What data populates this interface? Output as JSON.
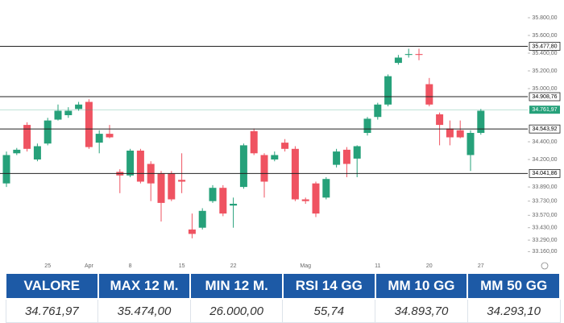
{
  "chart_data": {
    "type": "candlestick",
    "categories": [
      null,
      null,
      null,
      null,
      "25",
      null,
      null,
      null,
      "Apr",
      null,
      null,
      null,
      "8",
      null,
      null,
      null,
      null,
      "15",
      null,
      null,
      null,
      null,
      "22",
      null,
      null,
      null,
      null,
      null,
      null,
      "Mag",
      null,
      null,
      null,
      null,
      null,
      null,
      "11",
      null,
      null,
      null,
      null,
      "20",
      null,
      null,
      null,
      null,
      "27"
    ],
    "open": [
      33930,
      34270,
      34590,
      34200,
      34380,
      34650,
      34700,
      34770,
      34850,
      34390,
      34490,
      34060,
      34020,
      34300,
      34150,
      34040,
      34040,
      33970,
      33410,
      33430,
      33730,
      33880,
      33680,
      33890,
      34520,
      34250,
      34200,
      34390,
      34320,
      33750,
      33930,
      33770,
      34140,
      34310,
      34210,
      34500,
      34680,
      34820,
      35290,
      35380,
      35390,
      35050,
      34710,
      34550,
      34530,
      34250,
      34500
    ],
    "high": [
      34290,
      34330,
      34620,
      34380,
      34670,
      34820,
      34790,
      34850,
      34880,
      34530,
      34590,
      34090,
      34320,
      34320,
      34180,
      34070,
      34070,
      34270,
      33590,
      33650,
      33910,
      33910,
      33770,
      34380,
      34550,
      34270,
      34290,
      34430,
      34350,
      33770,
      33950,
      34000,
      34320,
      34340,
      34360,
      34680,
      34840,
      35160,
      35380,
      35450,
      35450,
      35120,
      34730,
      34640,
      34640,
      34530,
      34770
    ],
    "low": [
      33890,
      34250,
      34290,
      34180,
      34360,
      34640,
      34670,
      34750,
      34320,
      34270,
      34440,
      33820,
      34000,
      33930,
      33730,
      33500,
      33730,
      33820,
      33310,
      33410,
      33710,
      33560,
      33430,
      33870,
      34250,
      33770,
      34180,
      34290,
      33730,
      33700,
      33550,
      33750,
      34110,
      34000,
      34000,
      34470,
      34650,
      34800,
      35270,
      35350,
      35320,
      34800,
      34360,
      34360,
      34440,
      34070,
      34480
    ],
    "close": [
      34250,
      34310,
      34320,
      34350,
      34640,
      34750,
      34750,
      34820,
      34340,
      34490,
      34450,
      34020,
      34300,
      33950,
      33930,
      33710,
      33750,
      33950,
      33360,
      33620,
      33880,
      33590,
      33700,
      34360,
      34270,
      33950,
      34250,
      34320,
      33750,
      33730,
      33590,
      33980,
      34290,
      34150,
      34350,
      34660,
      34820,
      35140,
      35350,
      35390,
      35380,
      34820,
      34590,
      34450,
      34450,
      34500,
      34750
    ],
    "up_color": "#26a17a",
    "down_color": "#ef5361",
    "ylim": [
      33000,
      36000
    ],
    "yticks": [
      {
        "value": 35800,
        "label": "35.800,00"
      },
      {
        "value": 35600,
        "label": "35.600,00"
      },
      {
        "value": 35400,
        "label": "35.400,00"
      },
      {
        "value": 35200,
        "label": "35.200,00"
      },
      {
        "value": 35000,
        "label": "35.000,00"
      },
      {
        "value": 34400,
        "label": "34.400,00"
      },
      {
        "value": 34200,
        "label": "34.200,00"
      },
      {
        "value": 33890,
        "label": "33.890,00"
      },
      {
        "value": 33730,
        "label": "33.730,00"
      },
      {
        "value": 33570,
        "label": "33.570,00"
      },
      {
        "value": 33430,
        "label": "33.430,00"
      },
      {
        "value": 33290,
        "label": "33.290,00"
      },
      {
        "value": 33160,
        "label": "33.160,00"
      }
    ],
    "levels": [
      {
        "value": 35477.8,
        "label": "35.477,80"
      },
      {
        "value": 34908.76,
        "label": "34.908,76"
      },
      {
        "value": 34543.92,
        "label": "34.543,92"
      },
      {
        "value": 34041.86,
        "label": "34.041,86"
      }
    ],
    "last_price": {
      "value": 34761.97,
      "label": "34.761,97"
    },
    "last_price_color": "#26a17a"
  },
  "table": {
    "header": [
      "VALORE",
      "MAX 12 M.",
      "MIN 12 M.",
      "RSI 14 GG",
      "MM 10 GG",
      "MM 50 GG"
    ],
    "rows": [
      [
        "34.761,97",
        "35.474,00",
        "26.000,00",
        "55,74",
        "34.893,70",
        "34.293,10"
      ]
    ]
  }
}
